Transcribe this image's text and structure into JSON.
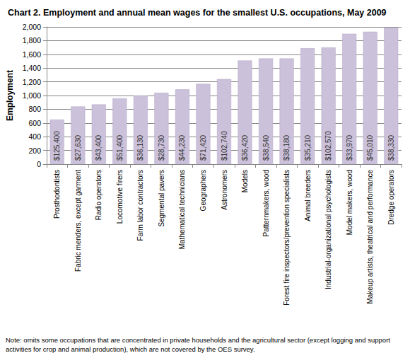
{
  "chart_data": {
    "type": "bar",
    "title": "Chart 2. Employment and annual mean wages for the smallest U.S. occupations, May 2009",
    "y_label": "Employment",
    "categories": [
      "Prosthodontists",
      "Fabric menders, except garment",
      "Radio operators",
      "Locomotive firers",
      "Farm labor contractors",
      "Segmental pavers",
      "Mathematical technicians",
      "Geographers",
      "Astronomers",
      "Models",
      "Patternmakers, wood",
      "Forest fire inspectors/prevention specialists",
      "Animal breeders",
      "Industrial-organizational psychologists",
      "Model makers, wood",
      "Makeup artists, theatrical and performance",
      "Dredge operators"
    ],
    "values": [
      650,
      840,
      870,
      960,
      1000,
      1040,
      1090,
      1170,
      1240,
      1510,
      1540,
      1540,
      1690,
      1700,
      1900,
      1930,
      1990
    ],
    "wage_labels": [
      "$125,400",
      "$27,630",
      "$43,400",
      "$51,400",
      "$36,130",
      "$28,730",
      "$44,230",
      "$71,420",
      "$102,740",
      "$36,420",
      "$38,540",
      "$38,180",
      "$35,210",
      "$102,570",
      "$33,970",
      "$45,010",
      "$38,330"
    ],
    "color": "#ccc1da",
    "ylim": [
      0,
      2000
    ],
    "yticks": [
      0,
      200,
      400,
      600,
      800,
      {
        "value": 1000,
        "label": "1,000"
      },
      {
        "value": 1200,
        "label": "1,200"
      },
      {
        "value": 1400,
        "label": "1,400"
      },
      {
        "value": 1600,
        "label": "1,600"
      },
      {
        "value": 1800,
        "label": "1,800"
      },
      {
        "value": 2000,
        "label": "2,000"
      }
    ],
    "grid": true,
    "note": "Note: omits some occupations that are concentrated in private households and the agricultural sector (except logging and support activities for crop and animal production), which are not covered by the OES survey."
  }
}
